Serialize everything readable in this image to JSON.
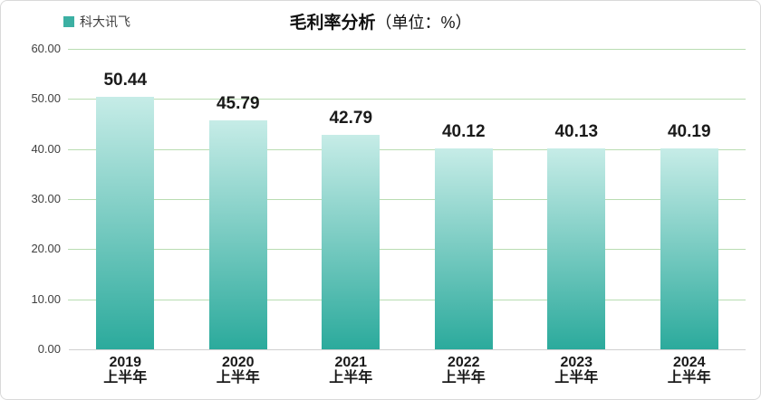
{
  "header": {
    "legend_name": "科大讯飞",
    "title": "毛利率分析",
    "unit_label": "（单位：%）"
  },
  "chart_data": {
    "type": "bar",
    "title": "毛利率分析",
    "unit_label": "（单位：%）",
    "legend_name": "科大讯飞",
    "legend_position": "top-left",
    "categories": [
      [
        "2019",
        "上半年"
      ],
      [
        "2020",
        "上半年"
      ],
      [
        "2021",
        "上半年"
      ],
      [
        "2022",
        "上半年"
      ],
      [
        "2023",
        "上半年"
      ],
      [
        "2024",
        "上半年"
      ]
    ],
    "values": [
      50.44,
      45.79,
      42.79,
      40.12,
      40.13,
      40.19
    ],
    "value_labels": [
      "50.44",
      "45.79",
      "42.79",
      "40.12",
      "40.13",
      "40.19"
    ],
    "ylabel": "",
    "xlabel": "",
    "ylim": [
      0,
      60
    ],
    "ytick_step": 10,
    "ytick_labels": [
      "0.00",
      "10.00",
      "20.00",
      "30.00",
      "40.00",
      "50.00",
      "60.00"
    ],
    "grid": true,
    "colors": {
      "legend_swatch": "#3cb0a3",
      "bar_gradient_top": "#c6ece7",
      "bar_gradient_bottom": "#2baa9c",
      "gridline": "#b9ddb2",
      "axis_line": "#d0d0d0",
      "tick_text": "#404040",
      "label_text": "#1a1a1a"
    }
  }
}
